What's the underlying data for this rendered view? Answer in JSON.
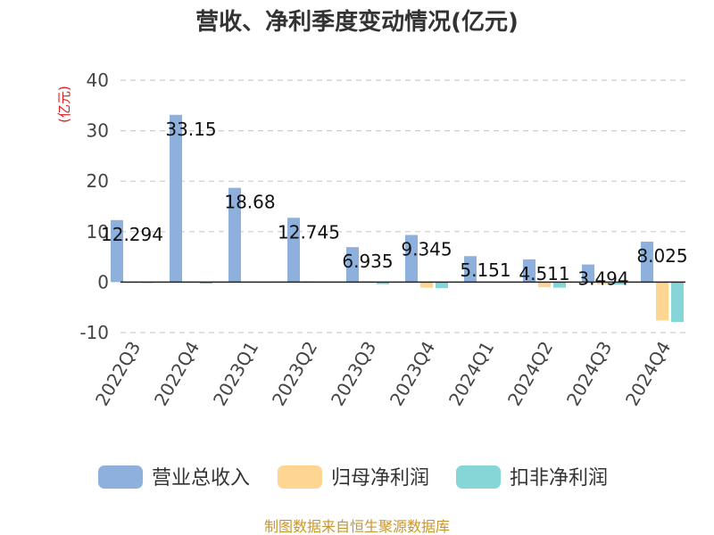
{
  "chart_data": {
    "type": "bar",
    "title": "营收、净利季度变动情况(亿元)",
    "unit_label": "(亿元)",
    "categories": [
      "2022Q3",
      "2022Q4",
      "2023Q1",
      "2023Q2",
      "2023Q3",
      "2023Q4",
      "2024Q1",
      "2024Q2",
      "2024Q3",
      "2024Q4"
    ],
    "series": [
      {
        "name": "营业总收入",
        "color": "#8eb0dd",
        "values": [
          12.294,
          33.15,
          18.68,
          12.745,
          6.935,
          9.345,
          5.151,
          4.511,
          3.494,
          8.025
        ],
        "labels": [
          "12.294",
          "33.15",
          "18.68",
          "12.745",
          "6.935",
          "9.345",
          "5.151",
          "4.511",
          "3.494",
          "8.025"
        ]
      },
      {
        "name": "归母净利润",
        "color": "#ffd592",
        "values": [
          0,
          0.15,
          0.1,
          0.2,
          0.2,
          -1.1,
          0.1,
          -1.0,
          -0.4,
          -7.6
        ]
      },
      {
        "name": "扣非净利润",
        "color": "#86d6d8",
        "values": [
          0,
          -0.3,
          0.05,
          0.1,
          -0.4,
          -1.2,
          0.05,
          -1.1,
          -0.5,
          -7.9
        ]
      }
    ],
    "ylim": [
      -10,
      40
    ],
    "yticks": [
      "-10",
      "0",
      "10",
      "20",
      "30",
      "40"
    ],
    "grid": true,
    "legend": "bottom",
    "source": "制图数据来自恒生聚源数据库"
  }
}
